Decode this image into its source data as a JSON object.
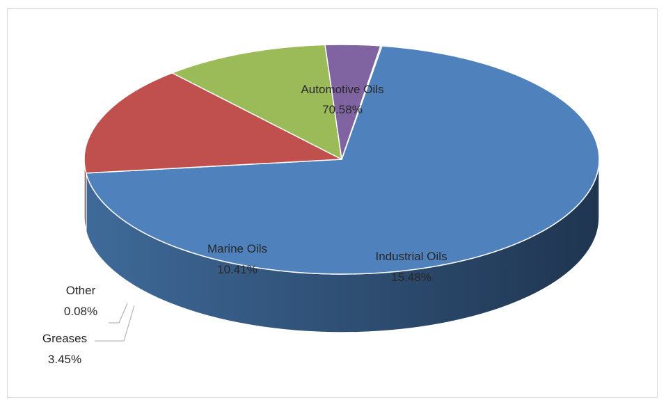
{
  "chart_data": {
    "type": "pie",
    "style": "3d-exploded-off",
    "slices": [
      {
        "name": "Automotive Oils",
        "value": 70.58,
        "label": "70.58%",
        "color": "#4f81bd",
        "side_dark": "#1f3550",
        "side_light": "#3f6a99"
      },
      {
        "name": "Industrial Oils",
        "value": 15.48,
        "label": "15.48%",
        "color": "#c0504d",
        "side_dark": "#4a1a19",
        "side_light": "#8a302e"
      },
      {
        "name": "Marine Oils",
        "value": 10.41,
        "label": "10.41%",
        "color": "#9bbb59",
        "side_dark": "#5f7a34",
        "side_light": "#86a64a"
      },
      {
        "name": "Greases",
        "value": 3.45,
        "label": "3.45%",
        "color": "#8064a2",
        "side_dark": "#5a4578",
        "side_light": "#6f5690"
      },
      {
        "name": "Other",
        "value": 0.08,
        "label": "0.08%",
        "color": "#4bacc6",
        "side_dark": "#2c6f80",
        "side_light": "#3a8fa5"
      }
    ]
  }
}
